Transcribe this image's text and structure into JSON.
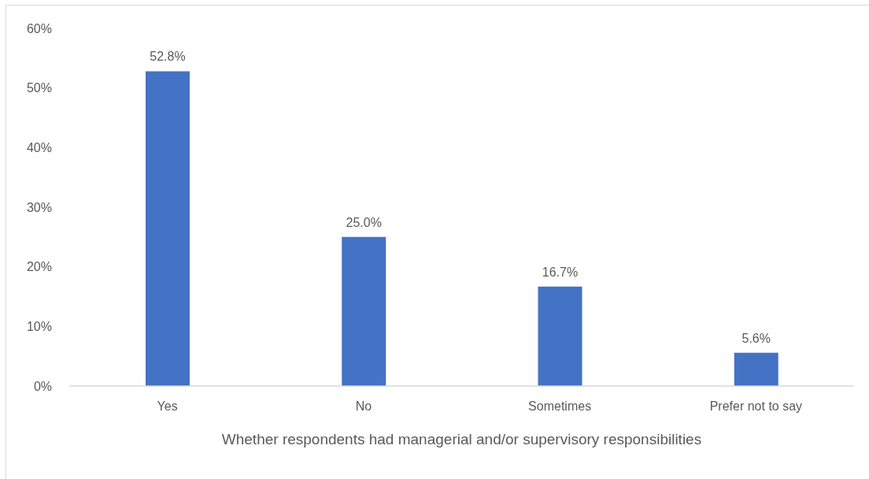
{
  "chart_data": {
    "type": "bar",
    "xlabel": "Whether respondents had managerial and/or supervisory responsibilities",
    "categories": [
      "Yes",
      "No",
      "Sometimes",
      "Prefer not to say"
    ],
    "values": [
      52.8,
      25.0,
      16.7,
      5.6
    ],
    "color": "#4472c4",
    "value_labels": [
      "52.8%",
      "25.0%",
      "16.7%",
      "5.6%"
    ],
    "ylim": [
      0,
      60
    ],
    "yticks": [
      {
        "value": 0,
        "label": "0%"
      },
      {
        "value": 10,
        "label": "10%"
      },
      {
        "value": 20,
        "label": "20%"
      },
      {
        "value": 30,
        "label": "30%"
      },
      {
        "value": 40,
        "label": "40%"
      },
      {
        "value": 50,
        "label": "50%"
      },
      {
        "value": 60,
        "label": "60%"
      }
    ]
  }
}
